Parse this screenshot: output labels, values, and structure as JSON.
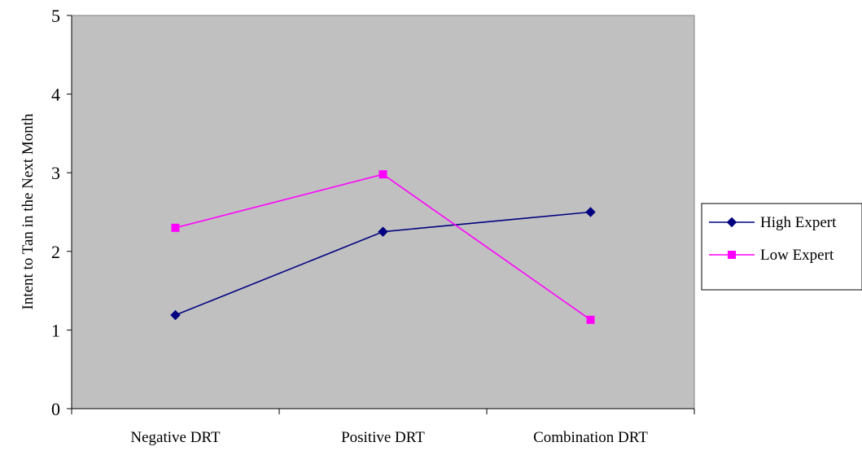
{
  "chart_data": {
    "type": "line",
    "title": "",
    "xlabel": "",
    "ylabel": "Intent to Tan in the Next Month",
    "categories": [
      "Negative DRT",
      "Positive DRT",
      "Combination DRT"
    ],
    "ylim": [
      0,
      5
    ],
    "yticks": [
      0,
      1,
      2,
      3,
      4,
      5
    ],
    "grid": false,
    "plot_background": "#C0C0C0",
    "legend_position": "right",
    "series": [
      {
        "name": "High Expert",
        "values": [
          1.19,
          2.25,
          2.5
        ],
        "color": "#000080",
        "marker": "diamond"
      },
      {
        "name": "Low Expert",
        "values": [
          2.3,
          2.98,
          1.13
        ],
        "color": "#FF00FF",
        "marker": "square"
      }
    ]
  }
}
